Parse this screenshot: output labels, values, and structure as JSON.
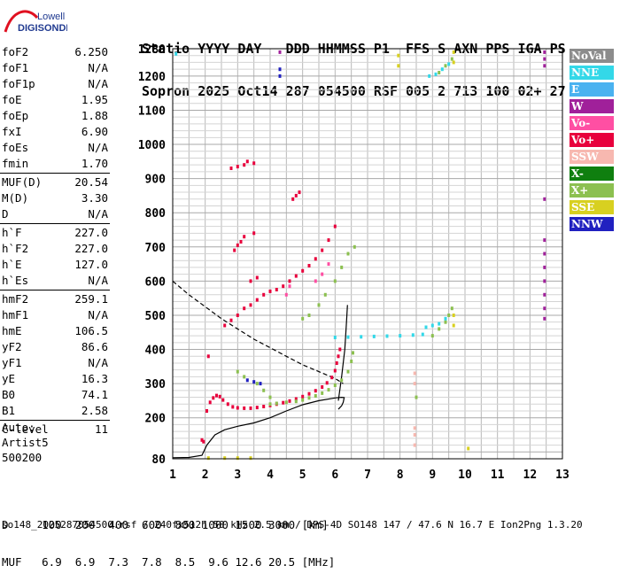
{
  "logo": {
    "line1": "Lowell",
    "line2": "DIGISONDE"
  },
  "header": {
    "line1": "Statio YYYY DAY   DDD HHMMSS P1  FFS S AXN PPS IGA PS",
    "line2": "Sopron 2025 Oct14 287 054500 RSF 005 2 713 100 02+ 27"
  },
  "params": {
    "group1": [
      {
        "label": "foF2",
        "value": "6.250"
      },
      {
        "label": "foF1",
        "value": "N/A"
      },
      {
        "label": "foF1p",
        "value": "N/A"
      },
      {
        "label": "foE",
        "value": "1.95"
      },
      {
        "label": "foEp",
        "value": "1.88"
      },
      {
        "label": "fxI",
        "value": "6.90"
      },
      {
        "label": "foEs",
        "value": "N/A"
      },
      {
        "label": "fmin",
        "value": "1.70"
      }
    ],
    "group2": [
      {
        "label": "MUF(D)",
        "value": "20.54"
      },
      {
        "label": "M(D)",
        "value": "3.30"
      },
      {
        "label": "D",
        "value": "N/A"
      }
    ],
    "group3": [
      {
        "label": "h`F",
        "value": "227.0"
      },
      {
        "label": "h`F2",
        "value": "227.0"
      },
      {
        "label": "h`E",
        "value": "127.0"
      },
      {
        "label": "h`Es",
        "value": "N/A"
      }
    ],
    "group4": [
      {
        "label": "hmF2",
        "value": "259.1"
      },
      {
        "label": "hmF1",
        "value": "N/A"
      },
      {
        "label": "hmE",
        "value": "106.5"
      },
      {
        "label": "yF2",
        "value": "86.6"
      },
      {
        "label": "yF1",
        "value": "N/A"
      },
      {
        "label": "yE",
        "value": "16.3"
      },
      {
        "label": "B0",
        "value": "74.1"
      },
      {
        "label": "B1",
        "value": "2.58"
      }
    ],
    "group5": [
      {
        "label": "C-level",
        "value": "11"
      }
    ]
  },
  "auto": {
    "line1": "Auto:",
    "line2": "Artist5",
    "line3": "500200"
  },
  "legend": [
    {
      "label": "NoVal",
      "color": "#8c8c8c"
    },
    {
      "label": "NNE",
      "color": "#33d8e8"
    },
    {
      "label": "E",
      "color": "#4ab2f0"
    },
    {
      "label": "W",
      "color": "#a0209a"
    },
    {
      "label": "Vo-",
      "color": "#ff4fa3"
    },
    {
      "label": "Vo+",
      "color": "#e8003c"
    },
    {
      "label": "SSW",
      "color": "#f7b8b0"
    },
    {
      "label": "X-",
      "color": "#0f7f0f"
    },
    {
      "label": "X+",
      "color": "#8cc050"
    },
    {
      "label": "SSE",
      "color": "#d8d020"
    },
    {
      "label": "NNW",
      "color": "#2020c0"
    }
  ],
  "chart_data": {
    "type": "scatter",
    "x_ticks": [
      "1",
      "2",
      "3",
      "4",
      "5",
      "6",
      "7",
      "8",
      "9",
      "10",
      "11",
      "12",
      "13"
    ],
    "y_ticks": [
      "80",
      "200",
      "300",
      "400",
      "500",
      "600",
      "700",
      "800",
      "900",
      "1000",
      "1100",
      "1200",
      "1280"
    ],
    "xlim": [
      1,
      13
    ],
    "ylim": [
      80,
      1280
    ],
    "grid": true,
    "series": [
      {
        "name": "Vo+",
        "color": "#e8003c",
        "points": [
          [
            2.15,
            245
          ],
          [
            2.25,
            258
          ],
          [
            2.35,
            265
          ],
          [
            2.45,
            262
          ],
          [
            2.55,
            252
          ],
          [
            2.7,
            240
          ],
          [
            2.85,
            232
          ],
          [
            3.0,
            229
          ],
          [
            3.2,
            228
          ],
          [
            3.4,
            228
          ],
          [
            3.6,
            230
          ],
          [
            3.8,
            233
          ],
          [
            4.0,
            236
          ],
          [
            4.2,
            240
          ],
          [
            4.4,
            244
          ],
          [
            4.6,
            249
          ],
          [
            4.8,
            255
          ],
          [
            5.0,
            262
          ],
          [
            5.2,
            270
          ],
          [
            5.4,
            279
          ],
          [
            5.6,
            290
          ],
          [
            5.75,
            302
          ],
          [
            5.9,
            318
          ],
          [
            6.0,
            338
          ],
          [
            6.05,
            360
          ],
          [
            6.1,
            380
          ],
          [
            6.15,
            400
          ],
          [
            1.9,
            135
          ],
          [
            1.95,
            130
          ],
          [
            2.05,
            220
          ],
          [
            2.1,
            380
          ],
          [
            2.6,
            470
          ],
          [
            2.8,
            485
          ],
          [
            3.0,
            500
          ],
          [
            3.2,
            520
          ],
          [
            3.4,
            530
          ],
          [
            3.6,
            545
          ],
          [
            3.8,
            560
          ],
          [
            4.0,
            570
          ],
          [
            4.2,
            575
          ],
          [
            4.4,
            585
          ],
          [
            4.6,
            600
          ],
          [
            4.8,
            615
          ],
          [
            5.0,
            630
          ],
          [
            5.2,
            645
          ],
          [
            5.4,
            665
          ],
          [
            5.6,
            690
          ],
          [
            5.8,
            720
          ],
          [
            6.0,
            760
          ],
          [
            2.9,
            690
          ],
          [
            3.0,
            705
          ],
          [
            3.1,
            715
          ],
          [
            3.2,
            730
          ],
          [
            3.5,
            740
          ],
          [
            3.4,
            600
          ],
          [
            3.6,
            610
          ],
          [
            4.7,
            840
          ],
          [
            4.8,
            850
          ],
          [
            4.9,
            860
          ],
          [
            2.8,
            930
          ],
          [
            3.0,
            935
          ],
          [
            3.2,
            940
          ],
          [
            3.3,
            950
          ],
          [
            3.5,
            945
          ]
        ]
      },
      {
        "name": "Vo-",
        "color": "#ff4fa3",
        "points": [
          [
            5.4,
            600
          ],
          [
            5.6,
            620
          ],
          [
            5.8,
            650
          ],
          [
            4.5,
            560
          ],
          [
            4.6,
            585
          ]
        ]
      },
      {
        "name": "X+",
        "color": "#8cc050",
        "points": [
          [
            4.0,
            240
          ],
          [
            4.2,
            242
          ],
          [
            4.5,
            245
          ],
          [
            4.8,
            248
          ],
          [
            5.0,
            252
          ],
          [
            5.2,
            258
          ],
          [
            5.4,
            264
          ],
          [
            5.6,
            272
          ],
          [
            5.8,
            282
          ],
          [
            6.0,
            295
          ],
          [
            6.2,
            310
          ],
          [
            6.4,
            335
          ],
          [
            6.5,
            365
          ],
          [
            6.55,
            390
          ],
          [
            3.6,
            300
          ],
          [
            3.8,
            280
          ],
          [
            4.0,
            260
          ],
          [
            3.2,
            320
          ],
          [
            3.0,
            335
          ],
          [
            5.5,
            530
          ],
          [
            5.7,
            560
          ],
          [
            6.0,
            600
          ],
          [
            6.2,
            640
          ],
          [
            6.4,
            680
          ],
          [
            6.6,
            700
          ],
          [
            5.2,
            500
          ],
          [
            5.0,
            490
          ],
          [
            8.5,
            260
          ],
          [
            9.0,
            440
          ],
          [
            9.2,
            460
          ],
          [
            9.4,
            480
          ],
          [
            9.5,
            500
          ],
          [
            9.6,
            520
          ],
          [
            9.2,
            1210
          ],
          [
            9.4,
            1230
          ],
          [
            9.6,
            1250
          ]
        ]
      },
      {
        "name": "NNE",
        "color": "#33d8e8",
        "points": [
          [
            6.0,
            435
          ],
          [
            6.4,
            436
          ],
          [
            6.8,
            437
          ],
          [
            7.2,
            438
          ],
          [
            7.6,
            439
          ],
          [
            8.0,
            440
          ],
          [
            8.4,
            442
          ],
          [
            8.7,
            444
          ],
          [
            8.8,
            465
          ],
          [
            9.0,
            470
          ],
          [
            9.2,
            475
          ],
          [
            9.4,
            490
          ],
          [
            8.9,
            1200
          ],
          [
            9.1,
            1205
          ],
          [
            9.3,
            1220
          ],
          [
            9.5,
            1235
          ],
          [
            1.1,
            1265
          ]
        ]
      },
      {
        "name": "W",
        "color": "#a0209a",
        "points": [
          [
            12.45,
            490
          ],
          [
            12.45,
            520
          ],
          [
            12.45,
            560
          ],
          [
            12.45,
            600
          ],
          [
            12.45,
            640
          ],
          [
            12.45,
            680
          ],
          [
            12.45,
            720
          ],
          [
            12.45,
            840
          ],
          [
            12.45,
            1230
          ],
          [
            12.45,
            1250
          ],
          [
            12.45,
            1270
          ],
          [
            4.3,
            1270
          ]
        ]
      },
      {
        "name": "NNW",
        "color": "#2020c0",
        "points": [
          [
            3.3,
            310
          ],
          [
            3.5,
            305
          ],
          [
            3.7,
            300
          ],
          [
            4.3,
            1200
          ],
          [
            4.3,
            1220
          ]
        ]
      },
      {
        "name": "SSW",
        "color": "#f7b8b0",
        "points": [
          [
            8.45,
            300
          ],
          [
            8.45,
            330
          ],
          [
            8.45,
            120
          ],
          [
            8.45,
            150
          ],
          [
            8.45,
            170
          ]
        ]
      },
      {
        "name": "SSE",
        "color": "#d8d020",
        "points": [
          [
            2.1,
            82
          ],
          [
            2.6,
            82
          ],
          [
            3.0,
            82
          ],
          [
            3.4,
            82
          ],
          [
            7.95,
            1230
          ],
          [
            7.95,
            1260
          ],
          [
            9.65,
            1240
          ],
          [
            9.65,
            1270
          ],
          [
            9.65,
            470
          ],
          [
            9.65,
            500
          ],
          [
            10.1,
            110
          ]
        ]
      }
    ],
    "trace": {
      "name": "profile",
      "points": [
        [
          1.0,
          83
        ],
        [
          1.5,
          84
        ],
        [
          1.9,
          90
        ],
        [
          2.05,
          120
        ],
        [
          2.3,
          150
        ],
        [
          2.6,
          165
        ],
        [
          3.0,
          175
        ],
        [
          3.5,
          185
        ],
        [
          4.0,
          200
        ],
        [
          4.5,
          220
        ],
        [
          5.0,
          238
        ],
        [
          5.5,
          250
        ],
        [
          6.0,
          258
        ],
        [
          6.2,
          260
        ],
        [
          6.28,
          259
        ],
        [
          6.25,
          245
        ],
        [
          6.2,
          235
        ],
        [
          6.1,
          225
        ]
      ]
    },
    "trace2": {
      "name": "profile-upper",
      "points": [
        [
          6.1,
          250
        ],
        [
          6.2,
          320
        ],
        [
          6.3,
          400
        ],
        [
          6.35,
          480
        ],
        [
          6.38,
          530
        ]
      ]
    },
    "muf_curve": {
      "name": "muf",
      "points": [
        [
          1.0,
          600
        ],
        [
          1.5,
          560
        ],
        [
          2.0,
          525
        ],
        [
          2.5,
          490
        ],
        [
          3.0,
          460
        ],
        [
          3.5,
          430
        ],
        [
          4.0,
          405
        ],
        [
          4.5,
          380
        ],
        [
          5.0,
          355
        ],
        [
          5.5,
          335
        ],
        [
          6.0,
          315
        ],
        [
          6.25,
          300
        ]
      ]
    }
  },
  "footer": {
    "line1": "D     100  200  400  600  800 1000 1500 3000 [km]",
    "line2": "MUF   6.9  6.9  7.3  7.8  8.5  9.6 12.6 20.5 [MHz]",
    "line3": "so148_2025287054500.rsf / 240fx512h 50 kHz 2.5 km / DPS-4D SO148 147 / 47.6 N 16.7 E Ion2Png 1.3.20"
  }
}
